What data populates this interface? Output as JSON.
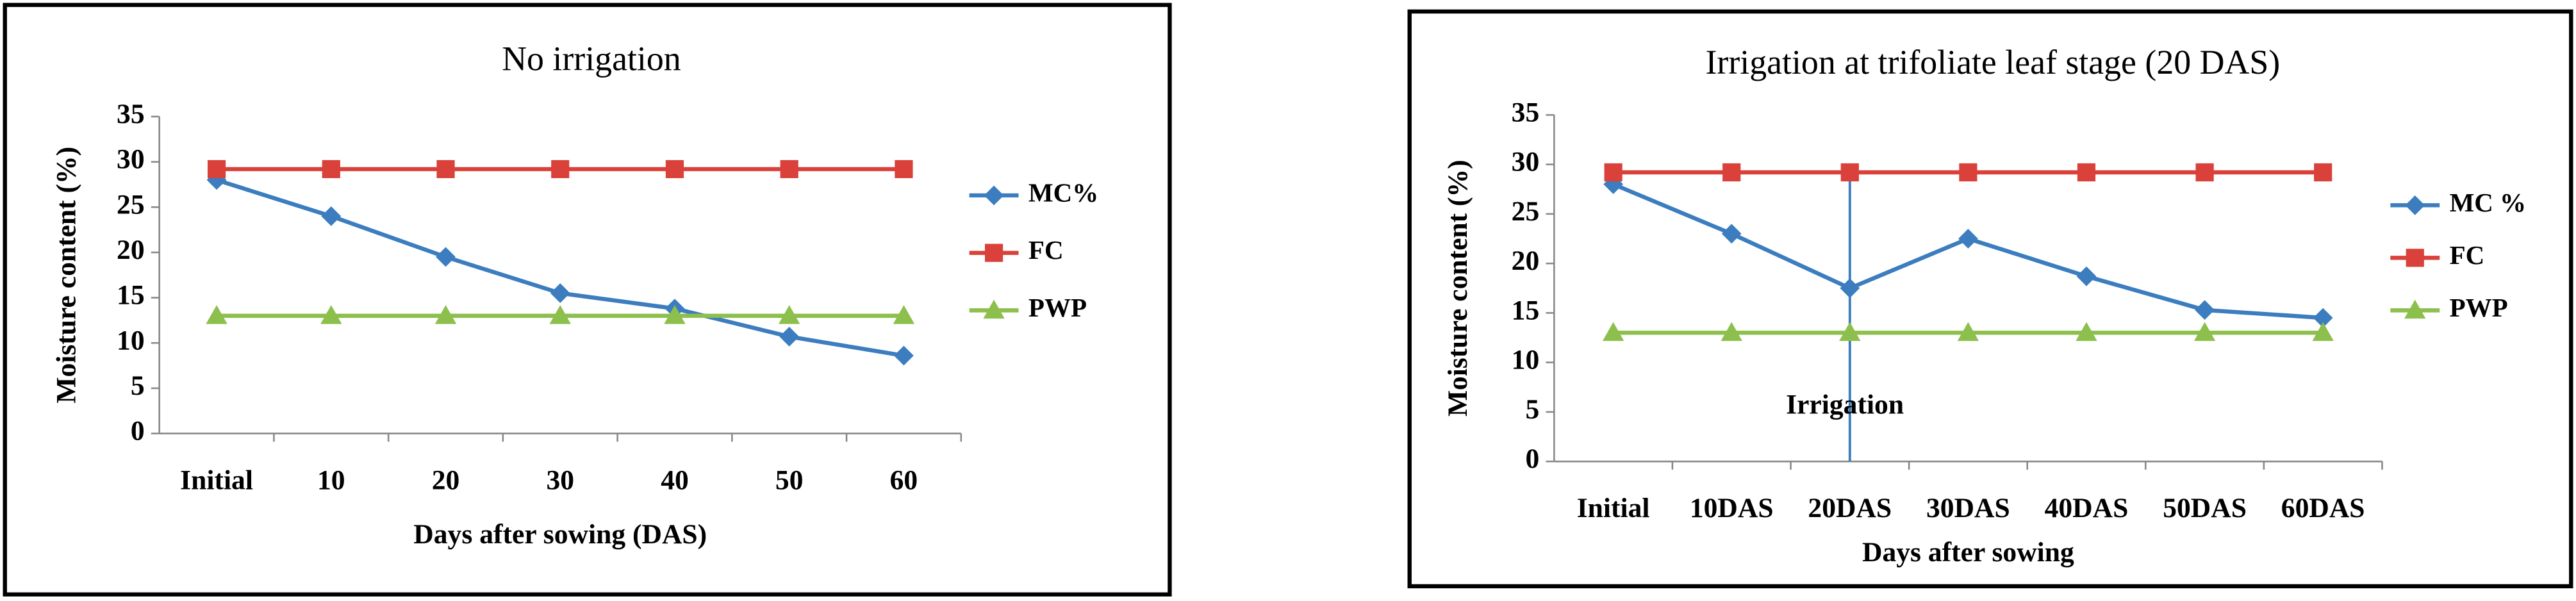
{
  "chart_data": [
    {
      "type": "line",
      "title": "No irrigation",
      "x_label": "Days after sowing (DAS)",
      "y_label": "Moisture content (%)",
      "categories": [
        "Initial",
        "10",
        "20",
        "30",
        "40",
        "50",
        "60"
      ],
      "series": [
        {
          "name": "MC%",
          "color": "#3b7dbf",
          "marker": "diamond",
          "values": [
            28,
            24,
            19.5,
            15.5,
            13.8,
            10.7,
            8.6
          ]
        },
        {
          "name": "FC",
          "color": "#d9413a",
          "marker": "square",
          "values": [
            29.2,
            29.2,
            29.2,
            29.2,
            29.2,
            29.2,
            29.2
          ]
        },
        {
          "name": "PWP",
          "color": "#8cbf4c",
          "marker": "triangle",
          "values": [
            13,
            13,
            13,
            13,
            13,
            13,
            13
          ]
        }
      ],
      "ylim": [
        0,
        35
      ],
      "yticks": [
        0,
        5,
        10,
        15,
        20,
        25,
        30,
        35
      ],
      "legend": "right"
    },
    {
      "type": "line",
      "title": "Irrigation at trifoliate leaf stage (20 DAS)",
      "x_label": "Days after sowing",
      "y_label": "Moisture content (%)",
      "annotation": "Irrigation",
      "categories": [
        "Initial",
        "10DAS",
        "20DAS",
        "30DAS",
        "40DAS",
        "50DAS",
        "60DAS"
      ],
      "series": [
        {
          "name": "MC %",
          "color": "#3b7dbf",
          "marker": "diamond",
          "values": [
            28,
            23,
            17.5,
            22.5,
            18.7,
            15.3,
            14.5
          ]
        },
        {
          "name": "FC",
          "color": "#d9413a",
          "marker": "square",
          "values": [
            29.2,
            29.2,
            29.2,
            29.2,
            29.2,
            29.2,
            29.2
          ]
        },
        {
          "name": "PWP",
          "color": "#8cbf4c",
          "marker": "triangle",
          "values": [
            13,
            13,
            13,
            13,
            13,
            13,
            13
          ]
        }
      ],
      "ylim": [
        0,
        35
      ],
      "yticks": [
        0,
        5,
        10,
        15,
        20,
        25,
        30,
        35
      ],
      "legend": "right"
    }
  ]
}
